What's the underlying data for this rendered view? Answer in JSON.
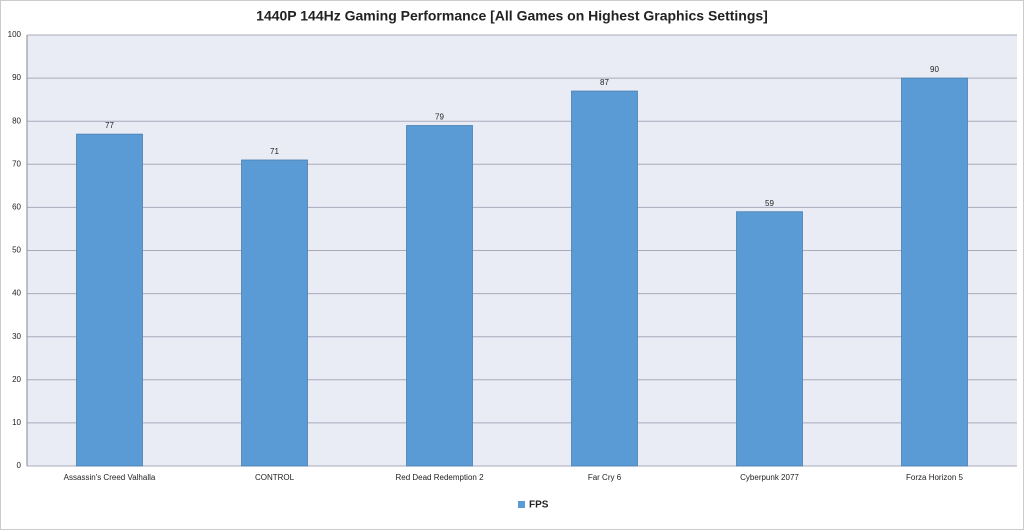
{
  "chart_data": {
    "type": "bar",
    "title": "1440P 144Hz Gaming Performance [All Games on Highest Graphics Settings]",
    "categories": [
      "Assassin's Creed Valhalla",
      "CONTROL",
      "Red Dead Redemption 2",
      "Far Cry 6",
      "Cyberpunk 2077",
      "Forza Horizon 5"
    ],
    "series": [
      {
        "name": "FPS",
        "color": "#5b9bd5",
        "values": [
          77,
          71,
          79,
          87,
          59,
          90
        ]
      }
    ],
    "ylim": [
      0,
      100
    ],
    "yticks": [
      0,
      10,
      20,
      30,
      40,
      50,
      60,
      70,
      80,
      90,
      100
    ],
    "grid": true,
    "legend": "bottom"
  }
}
